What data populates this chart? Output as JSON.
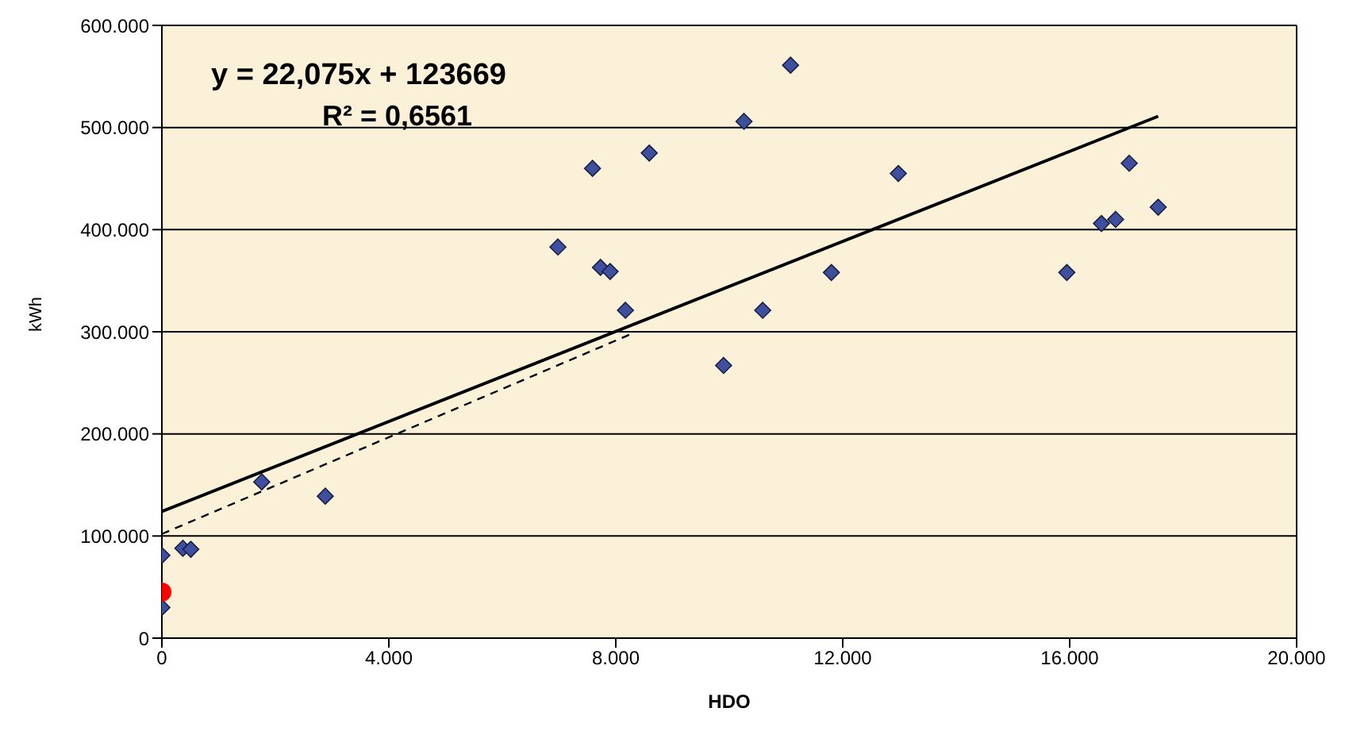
{
  "chart_data": {
    "type": "scatter",
    "xlabel": "HDO",
    "ylabel": "kWh",
    "annotations": [
      "y = 22,075x + 123669",
      "R² = 0,6561"
    ],
    "xlim": [
      0,
      20000
    ],
    "xticks": [
      {
        "value": 0,
        "label": "0"
      },
      {
        "value": 4000,
        "label": "4.000"
      },
      {
        "value": 8000,
        "label": "8.000"
      },
      {
        "value": 12000,
        "label": "12.000"
      },
      {
        "value": 16000,
        "label": "16.000"
      },
      {
        "value": 20000,
        "label": "20.000"
      }
    ],
    "ylim": [
      0,
      600000
    ],
    "yticks": [
      {
        "value": 0,
        "label": "0"
      },
      {
        "value": 100000,
        "label": "100.000"
      },
      {
        "value": 200000,
        "label": "200.000"
      },
      {
        "value": 300000,
        "label": "300.000"
      },
      {
        "value": 400000,
        "label": "400.000"
      },
      {
        "value": 500000,
        "label": "500.000"
      },
      {
        "value": 600000,
        "label": "600.000"
      }
    ],
    "grid": "y",
    "marker": "diamond",
    "legend": false,
    "series": [
      {
        "color": "#3f4f9f",
        "x": [
          0,
          0,
          370,
          510,
          1760,
          2880,
          6980,
          7590,
          8590,
          7730,
          7900,
          8170,
          10260,
          11080,
          12980,
          9900,
          10590,
          11800,
          15950,
          16560,
          16810,
          17050,
          17560
        ],
        "values": [
          30000,
          81000,
          88000,
          87000,
          153000,
          139000,
          383000,
          460000,
          475000,
          363000,
          359000,
          321000,
          506000,
          561000,
          455000,
          267000,
          321000,
          358000,
          358000,
          406000,
          410000,
          465000,
          422000
        ]
      },
      {
        "color": "#ff0000",
        "marker": "circle",
        "x": [
          0
        ],
        "values": [
          45000
        ]
      },
      {
        "type": "line",
        "color": "#000000",
        "line_style": "solid",
        "marker": "none",
        "x": [
          0,
          17560
        ],
        "values": [
          124000,
          511000
        ]
      },
      {
        "type": "line",
        "color": "#000000",
        "line_style": "dashed",
        "marker": "none",
        "x": [
          0,
          8280
        ],
        "values": [
          102000,
          298000
        ]
      }
    ]
  }
}
